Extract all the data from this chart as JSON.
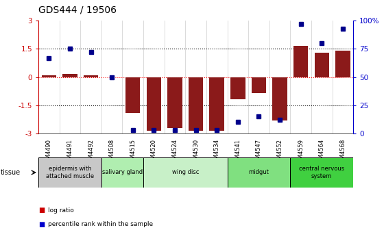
{
  "title": "GDS444 / 19506",
  "samples": [
    "GSM4490",
    "GSM4491",
    "GSM4492",
    "GSM4508",
    "GSM4515",
    "GSM4520",
    "GSM4524",
    "GSM4530",
    "GSM4534",
    "GSM4541",
    "GSM4547",
    "GSM4552",
    "GSM4559",
    "GSM4564",
    "GSM4568"
  ],
  "log_ratio": [
    0.1,
    0.15,
    0.08,
    0.0,
    -1.9,
    -2.85,
    -2.7,
    -2.85,
    -2.85,
    -1.2,
    -0.85,
    -2.3,
    1.65,
    1.3,
    1.4
  ],
  "percentile": [
    67,
    75,
    72,
    50,
    3,
    3,
    3,
    3,
    3,
    10,
    15,
    12,
    97,
    80,
    93
  ],
  "ylim": [
    -3,
    3
  ],
  "yticks_left": [
    -3,
    -1.5,
    0,
    1.5,
    3
  ],
  "yticks_right": [
    0,
    25,
    50,
    75,
    100
  ],
  "bar_color": "#8B1A1A",
  "dot_color": "#00008B",
  "tissue_groups": [
    {
      "label": "epidermis with\nattached muscle",
      "start": 0,
      "end": 3,
      "color": "#c8c8c8"
    },
    {
      "label": "salivary gland",
      "start": 3,
      "end": 5,
      "color": "#b0eeb0"
    },
    {
      "label": "wing disc",
      "start": 5,
      "end": 9,
      "color": "#c8f0c8"
    },
    {
      "label": "midgut",
      "start": 9,
      "end": 12,
      "color": "#80e080"
    },
    {
      "label": "central nervous\nsystem",
      "start": 12,
      "end": 15,
      "color": "#40d040"
    }
  ],
  "legend_log_color": "#cc0000",
  "legend_dot_color": "#0000cc",
  "title_fontsize": 10,
  "bg_color": "#ffffff"
}
